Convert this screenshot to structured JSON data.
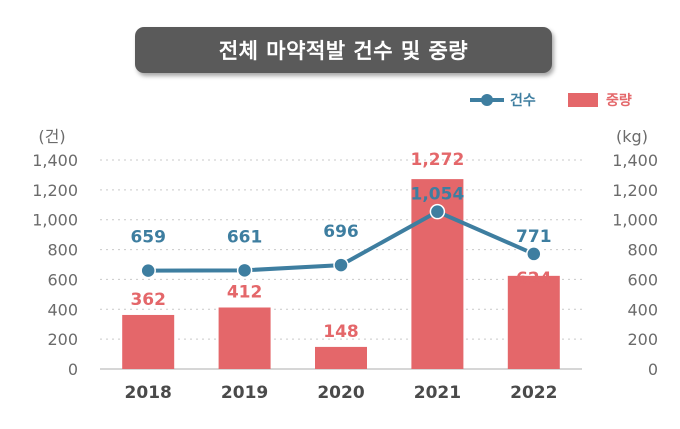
{
  "title": "전체 마약적발 건수 및 중량",
  "legend": {
    "line_label": "건수",
    "bar_label": "중량"
  },
  "colors": {
    "line": "#3e7ea0",
    "bar": "#e4676a",
    "title_bg": "#5a5a5a"
  },
  "chart_data": {
    "type": "bar",
    "title": "전체 마약적발 건수 및 중량",
    "categories": [
      "2018",
      "2019",
      "2020",
      "2021",
      "2022"
    ],
    "series": [
      {
        "name": "중량",
        "type": "bar",
        "axis": "right",
        "values": [
          362,
          412,
          148,
          1272,
          624
        ]
      },
      {
        "name": "건수",
        "type": "line",
        "axis": "left",
        "values": [
          659,
          661,
          696,
          1054,
          771
        ]
      }
    ],
    "ylabel_left": "(건)",
    "ylabel_right": "(kg)",
    "ylim": [
      0,
      1400
    ],
    "yticks": [
      "0",
      "200",
      "400",
      "600",
      "800",
      "1,000",
      "1,200",
      "1,400"
    ],
    "bar_labels": [
      "362",
      "412",
      "148",
      "1,272",
      "624"
    ],
    "line_labels": [
      "659",
      "661",
      "696",
      "1,054",
      "771"
    ],
    "grid": true,
    "legend_position": "top-right"
  }
}
